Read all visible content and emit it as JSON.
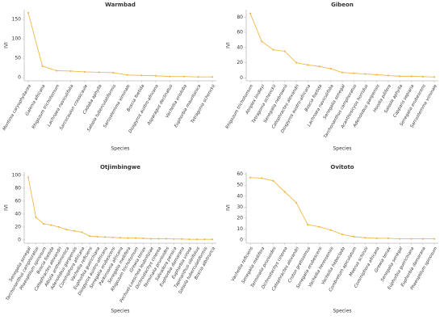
{
  "chart_data": [
    {
      "type": "line",
      "title": "Warmbad",
      "xlabel": "Species",
      "ylabel": "IVI",
      "color": "#f0b94a",
      "categories": [
        "Montinia caryophyllacea",
        "Galenia africana",
        "Rhigozum trichotomum",
        "Lachnaea naviculifolia",
        "Sarcocaulon crassicaule",
        "Cadaba aphylla",
        "Salsola tuberculatiformis",
        "Sarcostemma viminale",
        "Boscia foetida",
        "Diospyros austro-africana",
        "Asparagus declinatus",
        "Vachellia erioloba",
        "Euphorbia mauritanica",
        "Tetragonia schenckii"
      ],
      "values": [
        167,
        30,
        18,
        17,
        15,
        14,
        13,
        7,
        6,
        5,
        3,
        3,
        2,
        2
      ],
      "ylim": [
        -8,
        175
      ],
      "yticks": [
        0,
        50,
        100,
        150
      ]
    },
    {
      "type": "line",
      "title": "Gibeon",
      "xlabel": "Species",
      "ylabel": "IVI",
      "color": "#f0b94a",
      "categories": [
        "Rhigozum trichotomum",
        "Atriplex lindleyi",
        "Tetragonia schenckii",
        "Senegalia nebrownii",
        "Catophractes alexandri",
        "Diospyros austro-africana",
        "Boscia foetida",
        "Lachnaea naviculifolia",
        "Senegalia senegal",
        "Tarchonanthus camphoratus",
        "Acanthosicyos horridus",
        "Adenolobus garipensis",
        "Hoodia pilifera",
        "Salsola aphylla",
        "Capparis sepiaria",
        "Senegalia erubescens",
        "Sarcostemma viminale"
      ],
      "values": [
        85,
        48,
        37,
        35,
        20,
        17,
        15,
        12,
        7,
        6,
        5,
        4,
        3,
        2,
        2,
        1.5,
        1
      ],
      "ylim": [
        -4,
        90
      ],
      "yticks": [
        0,
        20,
        40,
        60,
        80
      ]
    },
    {
      "type": "line",
      "title": "Otjimbingwe",
      "xlabel": "Species",
      "ylabel": "IVI",
      "color": "#f0b94a",
      "categories": [
        "Senegalia senegal",
        "Tarchonanthus camphoratus",
        "Phaeoptilum spinosum",
        "Boscia foetida",
        "Catophractes alexandri",
        "Albizia anthelmintica",
        "Adenolobus garipensis",
        "Commiphora africana",
        "Vachellia reficiens",
        "Euphorbia guerichiana",
        "Diospyros austro-africana",
        "Senegalia erubescens",
        "Parkinsonia africana",
        "Senegalia mellifera",
        "Rhigozum trichotomum",
        "Grewia tenax",
        "Pechuel-Loeschea leubnitziae",
        "Dichrostachys cinerea",
        "Terminalia prunioides",
        "Salvadora persica",
        "Euphorbia damarana",
        "Euphorbia virosa",
        "Tapinanthus oleifolius",
        "Salsola tuberculatiformis",
        "Boscia albitrunca"
      ],
      "values": [
        97,
        35,
        25,
        23,
        20,
        16,
        14,
        12,
        6,
        5,
        4.5,
        4,
        3.5,
        3,
        3,
        2.5,
        2,
        2,
        2,
        1.5,
        1.5,
        1,
        1,
        1,
        1
      ],
      "ylim": [
        -5,
        105
      ],
      "yticks": [
        0,
        20,
        40,
        60,
        80,
        100
      ]
    },
    {
      "type": "line",
      "title": "Ovitoto",
      "xlabel": "Species",
      "ylabel": "IVI",
      "color": "#f0b94a",
      "categories": [
        "Vachellia reficiens",
        "Senegalia mellifera",
        "Terminalia prunioides",
        "Dichrostachys cinerea",
        "Catophractes alexandri",
        "Croton gratissimus",
        "Senegalia erubescens",
        "Vachellia hereroensis",
        "Vachellia hebeclada",
        "Combretum apiculatum",
        "Maerua schinzii",
        "Commiphora africana",
        "Grewia tenax",
        "Senegalia senegal",
        "Euphorbia guerichiana",
        "Euphorbia damarana",
        "Phaeoptilum spinosum"
      ],
      "values": [
        57,
        56.5,
        54,
        44,
        34,
        14,
        12,
        9,
        5,
        3,
        2,
        1.5,
        1.5,
        1,
        1,
        1,
        1
      ],
      "ylim": [
        -3,
        62
      ],
      "yticks": [
        0,
        10,
        20,
        30,
        40,
        50,
        60
      ]
    }
  ]
}
